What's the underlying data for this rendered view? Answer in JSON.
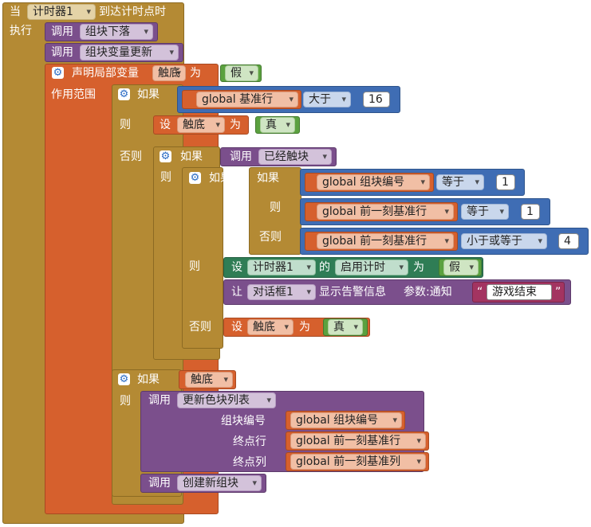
{
  "event": {
    "when": "当",
    "component": "计时器1",
    "event_name": "到达计时点时",
    "do": "执行"
  },
  "calls": {
    "call": "调用",
    "block_fall": "组块下落",
    "block_var_update": "组块变量更新",
    "already_touched": "已经触块",
    "update_color_list": "更新色块列表",
    "create_new_block": "创建新组块"
  },
  "local": {
    "declare": "声明局部变量",
    "var_name": "触底",
    "as": "为",
    "init_value": "假",
    "scope": "作用范围"
  },
  "control": {
    "if": "如果",
    "then": "则",
    "else": "否则"
  },
  "ops": {
    "greater": "大于",
    "equal": "等于",
    "lte": "小于或等于"
  },
  "vars": {
    "base_row": "global 基准行",
    "block_no": "global 组块编号",
    "prev_base_row": "global 前一刻基准行",
    "prev_base_col": "global 前一刻基准列",
    "touch": "触底"
  },
  "nums": {
    "n16": "16",
    "n1a": "1",
    "n1b": "1",
    "n4": "4"
  },
  "set": {
    "set": "设",
    "as": "为",
    "true_val": "真",
    "false_val": "假"
  },
  "timer_set": {
    "component": "计时器1",
    "of": "的",
    "prop": "启用计时",
    "as": "为",
    "value": "假"
  },
  "notifier": {
    "let": "让",
    "component": "对话框1",
    "method": "显示告警信息",
    "param": "参数:通知",
    "text": "游戏结束",
    "quote_open": "“",
    "quote_close": "”"
  },
  "params": {
    "block_no_label": "组块编号",
    "end_row_label": "终点行",
    "end_col_label": "终点列"
  },
  "colors": {
    "event": "#B48A34",
    "procedure": "#7B4F8C",
    "variable": "#D6602D",
    "math_logic": "#3F6DB4",
    "boolean": "#5BA13F",
    "component_setter": "#2F7D55",
    "text": "#A33461"
  }
}
